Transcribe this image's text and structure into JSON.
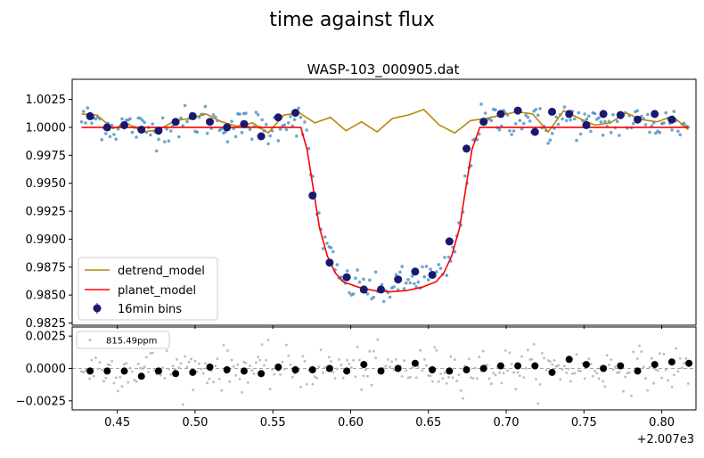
{
  "figure": {
    "suptitle": "time against flux",
    "offset_label": "+2.007e3"
  },
  "colors": {
    "data_points": "#1f77b4",
    "detrend_model": "#b8860b",
    "planet_model": "#ff0000",
    "bins": "#191970",
    "residual_points": "#bbbbbb",
    "residual_bins": "#000000",
    "zero_line": "#888888"
  },
  "chart_data": [
    {
      "type": "scatter",
      "panel": "top",
      "title": "WASP-103_000905.dat",
      "xlabel": "",
      "ylabel": "",
      "xlim": [
        0.421,
        0.822
      ],
      "ylim": [
        0.9823,
        1.0043
      ],
      "x_ticks": [
        0.45,
        0.5,
        0.55,
        0.6,
        0.65,
        0.7,
        0.75,
        0.8
      ],
      "x_tick_labels_visible": false,
      "y_ticks": [
        0.9825,
        0.985,
        0.9875,
        0.99,
        0.9925,
        0.995,
        0.9975,
        1.0,
        1.0025
      ],
      "y_tick_labels": [
        "0.9825",
        "0.9850",
        "0.9875",
        "0.9900",
        "0.9925",
        "0.9950",
        "0.9975",
        "1.0000",
        "1.0025"
      ],
      "grid": false,
      "legend_position": "lower-left",
      "legend": [
        "detrend_model",
        "planet_model",
        "16min bins"
      ],
      "transit": {
        "ingress_start": 0.568,
        "ingress_end": 0.595,
        "egress_start": 0.655,
        "egress_end": 0.683,
        "mid": 0.6255,
        "depth": 0.0147
      },
      "data_x_range": [
        0.427,
        0.817
      ],
      "point_scatter": 0.00075,
      "series": [
        {
          "name": "detrend_model",
          "style": "line",
          "x": [
            0.427,
            0.437,
            0.447,
            0.457,
            0.467,
            0.477,
            0.487,
            0.497,
            0.507,
            0.517,
            0.527,
            0.537,
            0.547,
            0.557,
            0.567,
            0.577,
            0.587,
            0.597,
            0.607,
            0.617,
            0.627,
            0.637,
            0.647,
            0.657,
            0.667,
            0.677,
            0.687,
            0.697,
            0.707,
            0.717,
            0.727,
            0.737,
            0.747,
            0.757,
            0.767,
            0.777,
            0.787,
            0.797,
            0.807,
            0.817
          ],
          "y": [
            1.0012,
            1.0011,
            0.9999,
            1.0003,
            0.9996,
            0.9998,
            1.0006,
            1.0008,
            1.0012,
            1.0005,
            1.0001,
            1.0004,
            0.9995,
            1.0011,
            1.0013,
            1.0004,
            1.0009,
            0.9997,
            1.0005,
            0.9996,
            1.0008,
            1.0011,
            1.0016,
            1.0002,
            0.9995,
            1.0006,
            1.0008,
            1.0011,
            1.0014,
            1.0012,
            0.9996,
            1.0015,
            1.0008,
            1.0002,
            1.0004,
            1.0013,
            1.0007,
            1.0005,
            1.001,
            0.9998
          ]
        },
        {
          "name": "planet_model",
          "style": "line",
          "x": [
            0.427,
            0.568,
            0.572,
            0.576,
            0.58,
            0.585,
            0.59,
            0.595,
            0.605,
            0.615,
            0.6255,
            0.636,
            0.646,
            0.655,
            0.66,
            0.665,
            0.67,
            0.674,
            0.678,
            0.683,
            0.817
          ],
          "y": [
            1.0,
            1.0,
            0.998,
            0.9945,
            0.991,
            0.9885,
            0.987,
            0.9862,
            0.9857,
            0.9854,
            0.9853,
            0.9854,
            0.9857,
            0.9862,
            0.987,
            0.9885,
            0.991,
            0.9945,
            0.998,
            1.0,
            1.0
          ]
        },
        {
          "name": "16min bins",
          "style": "markers_with_errorbars",
          "x": [
            0.4325,
            0.4435,
            0.4545,
            0.4655,
            0.4765,
            0.4875,
            0.4985,
            0.5095,
            0.5205,
            0.5315,
            0.5425,
            0.5535,
            0.5645,
            0.5755,
            0.5865,
            0.5975,
            0.6085,
            0.6195,
            0.6305,
            0.6415,
            0.6525,
            0.6635,
            0.6745,
            0.6855,
            0.6965,
            0.7075,
            0.7185,
            0.7295,
            0.7405,
            0.7515,
            0.7625,
            0.7735,
            0.7845,
            0.7955,
            0.8065
          ],
          "y": [
            1.001,
            1.0,
            1.0002,
            0.9998,
            0.9997,
            1.0005,
            1.001,
            1.0005,
            1.0,
            1.0003,
            0.9992,
            1.0009,
            1.0013,
            0.9939,
            0.9879,
            0.9866,
            0.9855,
            0.9855,
            0.9864,
            0.9871,
            0.9868,
            0.9898,
            0.9981,
            1.0005,
            1.0012,
            1.0015,
            0.9996,
            1.0014,
            1.0012,
            1.0002,
            1.0012,
            1.0011,
            1.0007,
            1.0012,
            1.0007
          ]
        }
      ]
    },
    {
      "type": "scatter",
      "panel": "bottom",
      "title": "",
      "xlabel": "",
      "ylabel": "",
      "xlim": [
        0.421,
        0.822
      ],
      "ylim": [
        -0.0032,
        0.0032
      ],
      "x_ticks": [
        0.45,
        0.5,
        0.55,
        0.6,
        0.65,
        0.7,
        0.75,
        0.8
      ],
      "x_tick_labels": [
        "0.45",
        "0.50",
        "0.55",
        "0.60",
        "0.65",
        "0.70",
        "0.75",
        "0.80"
      ],
      "y_ticks": [
        -0.0025,
        0.0,
        0.0025
      ],
      "y_tick_labels": [
        "−0.0025",
        "0.0000",
        "0.0025"
      ],
      "grid": false,
      "zero_line": true,
      "legend_position": "top-left",
      "legend": [
        "815.49ppm"
      ],
      "residual_scatter": 0.0008,
      "series": [
        {
          "name": "815.49ppm",
          "style": "small_points",
          "x_range": [
            0.427,
            0.817
          ]
        },
        {
          "name": "binned residuals",
          "style": "markers",
          "x": [
            0.4325,
            0.4435,
            0.4545,
            0.4655,
            0.4765,
            0.4875,
            0.4985,
            0.5095,
            0.5205,
            0.5315,
            0.5425,
            0.5535,
            0.5645,
            0.5755,
            0.5865,
            0.5975,
            0.6085,
            0.6195,
            0.6305,
            0.6415,
            0.6525,
            0.6635,
            0.6745,
            0.6855,
            0.6965,
            0.7075,
            0.7185,
            0.7295,
            0.7405,
            0.7515,
            0.7625,
            0.7735,
            0.7845,
            0.7955,
            0.8065,
            0.8175
          ],
          "y": [
            -0.0002,
            -0.0002,
            -0.0002,
            -0.0006,
            -0.0002,
            -0.0004,
            -0.0003,
            0.0001,
            -0.0001,
            -0.0002,
            -0.0004,
            0.0001,
            -0.0001,
            -0.0001,
            0.0,
            -0.0002,
            0.0003,
            -0.0002,
            0.0,
            0.0004,
            -0.0001,
            -0.0002,
            -0.0001,
            0.0,
            0.0002,
            0.0002,
            0.0002,
            -0.0003,
            0.0007,
            0.0003,
            0.0,
            0.0002,
            -0.0002,
            0.0003,
            0.0005,
            0.0004
          ]
        }
      ]
    }
  ]
}
